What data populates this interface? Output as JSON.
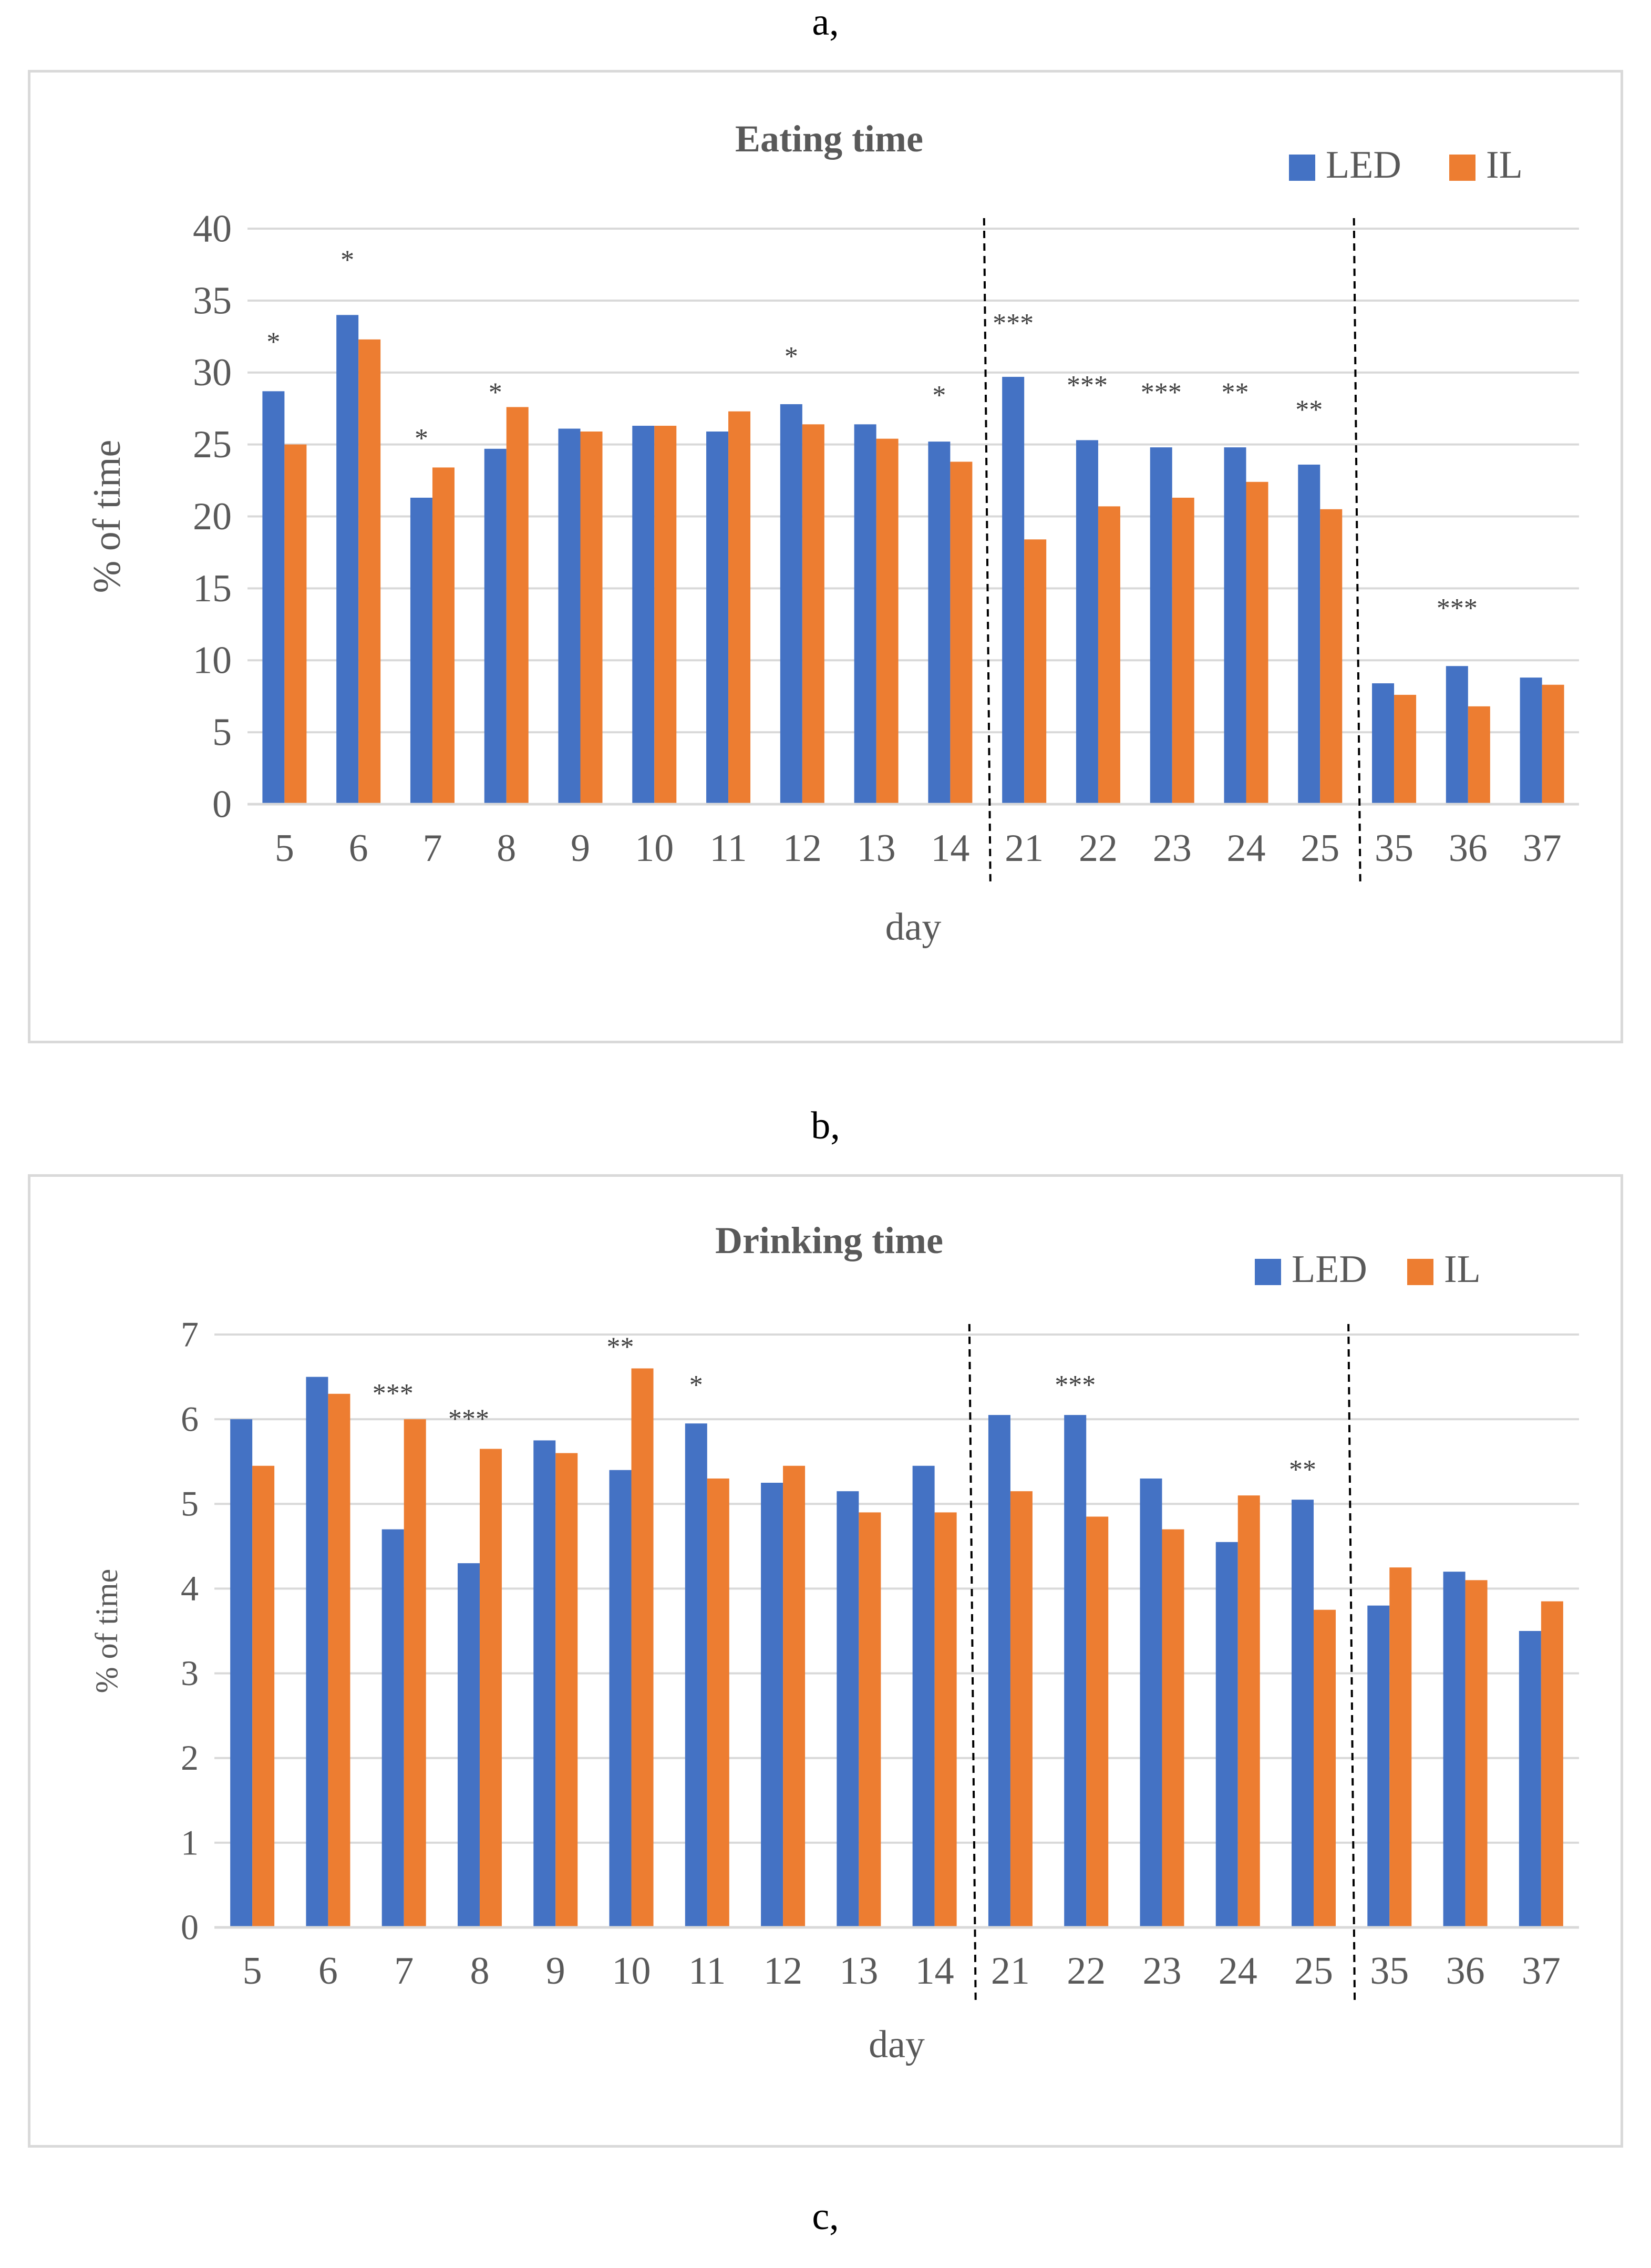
{
  "panel_labels": [
    "a,",
    "b,",
    "c,"
  ],
  "colors": {
    "LED": "#4472C4",
    "IL": "#ED7D31",
    "grid": "#d9d9d9",
    "text": "#595959"
  },
  "chart_data": [
    {
      "type": "bar",
      "title": "Eating time",
      "xlabel": "day",
      "ylabel": "% of time",
      "ylim": [
        0,
        40
      ],
      "yticks": [
        0,
        5,
        10,
        15,
        20,
        25,
        30,
        35,
        40
      ],
      "grid": true,
      "legend_position": "top-right",
      "categories": [
        "5",
        "6",
        "7",
        "8",
        "9",
        "10",
        "11",
        "12",
        "13",
        "14",
        "21",
        "22",
        "23",
        "24",
        "25",
        "35",
        "36",
        "37"
      ],
      "series": [
        {
          "name": "LED",
          "values": [
            28.7,
            34.0,
            21.3,
            24.7,
            26.1,
            26.3,
            25.9,
            27.8,
            26.4,
            25.2,
            29.7,
            25.3,
            24.8,
            24.8,
            23.6,
            8.4,
            9.6,
            8.8
          ]
        },
        {
          "name": "IL",
          "values": [
            25.0,
            32.3,
            23.4,
            27.6,
            25.9,
            26.3,
            27.3,
            26.4,
            25.4,
            23.8,
            18.4,
            20.7,
            21.3,
            22.4,
            20.5,
            7.6,
            6.8,
            8.3
          ]
        }
      ],
      "significance": [
        "*",
        "*",
        "*",
        "*",
        "",
        "",
        "",
        "*",
        "",
        "*",
        "***",
        "***",
        "***",
        "**",
        "**",
        "",
        "***",
        ""
      ],
      "sig_y": [
        31.5,
        37.2,
        24.8,
        28.0,
        null,
        null,
        null,
        30.5,
        null,
        27.8,
        32.8,
        28.5,
        28.0,
        28.0,
        26.8,
        null,
        13.0,
        null
      ],
      "dividers_after": [
        9,
        14
      ]
    },
    {
      "type": "bar",
      "title": "Drinking time",
      "xlabel": "day",
      "ylabel": "% of time",
      "ylim": [
        0,
        7
      ],
      "yticks": [
        0,
        1,
        2,
        3,
        4,
        5,
        6,
        7
      ],
      "grid": true,
      "legend_position": "top-right",
      "categories": [
        "5",
        "6",
        "7",
        "8",
        "9",
        "10",
        "11",
        "12",
        "13",
        "14",
        "21",
        "22",
        "23",
        "24",
        "25",
        "35",
        "36",
        "37"
      ],
      "series": [
        {
          "name": "LED",
          "values": [
            6.0,
            6.5,
            4.7,
            4.3,
            5.75,
            5.4,
            5.95,
            5.25,
            5.15,
            5.45,
            6.05,
            6.05,
            5.3,
            4.55,
            5.05,
            3.8,
            4.2,
            3.5
          ]
        },
        {
          "name": "IL",
          "values": [
            5.45,
            6.3,
            6.0,
            5.65,
            5.6,
            6.6,
            5.3,
            5.45,
            4.9,
            4.9,
            5.15,
            4.85,
            4.7,
            5.1,
            3.75,
            4.25,
            4.1,
            3.85
          ]
        }
      ],
      "significance": [
        "",
        "",
        "***",
        "***",
        "",
        "**",
        "*",
        "",
        "",
        "",
        "",
        "***",
        "",
        "",
        "**",
        "",
        "",
        ""
      ],
      "sig_y": [
        null,
        null,
        6.2,
        5.9,
        null,
        6.75,
        6.3,
        null,
        null,
        null,
        null,
        6.3,
        null,
        null,
        5.3,
        null,
        null,
        null
      ],
      "dividers_after": [
        9,
        14
      ]
    }
  ]
}
